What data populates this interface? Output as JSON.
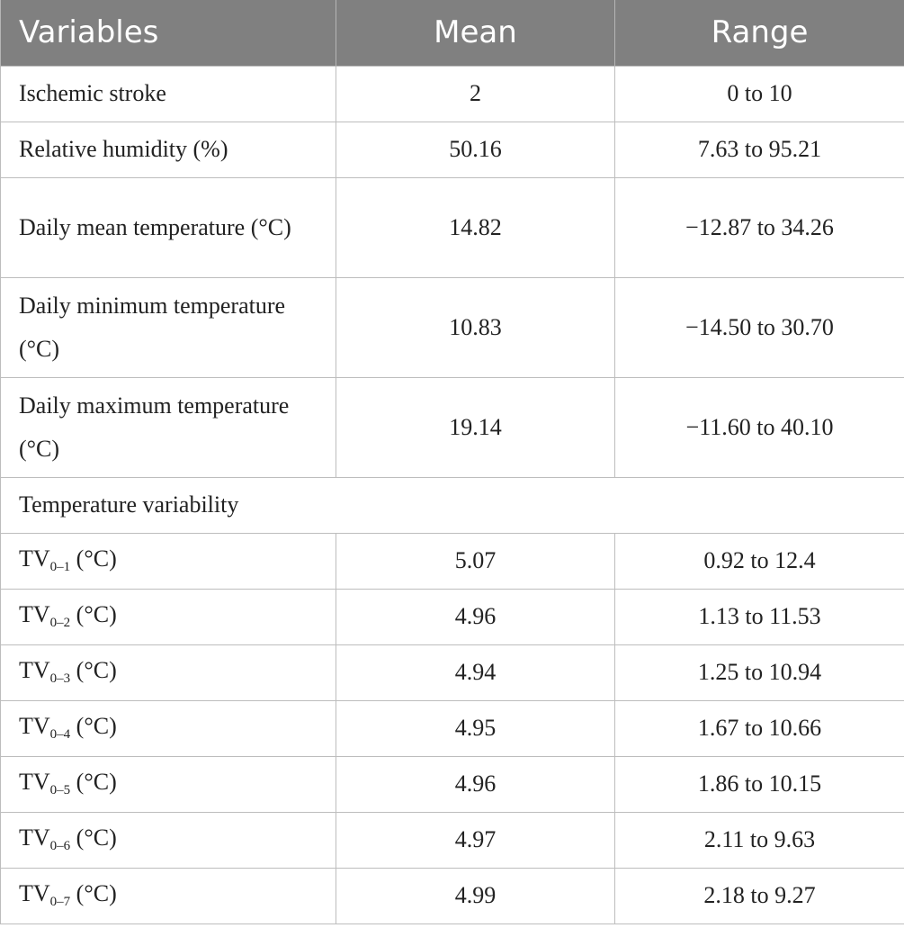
{
  "headers": [
    "Variables",
    "Mean",
    "Range"
  ],
  "rows": [
    {
      "variable": "Ischemic stroke",
      "mean": "2",
      "range": "0 to 10"
    },
    {
      "variable": "Relative humidity (%)",
      "mean": "50.16",
      "range": "7.63 to 95.21"
    },
    {
      "variable": "Daily mean temperature (°C)",
      "mean": "14.82",
      "range": "−12.87 to 34.26"
    },
    {
      "variable": "Daily minimum temperature (°C)",
      "mean": "10.83",
      "range": "−14.50 to 30.70"
    },
    {
      "variable": "Daily maximum temperature (°C)",
      "mean": "19.14",
      "range": "−11.60 to 40.10"
    }
  ],
  "section": "Temperature variability",
  "tv_rows": [
    {
      "prefix": "TV",
      "sub": "0–1",
      "unit": " (°C)",
      "mean": "5.07",
      "range": "0.92 to 12.4"
    },
    {
      "prefix": "TV",
      "sub": "0–2",
      "unit": " (°C)",
      "mean": "4.96",
      "range": "1.13 to 11.53"
    },
    {
      "prefix": "TV",
      "sub": "0–3",
      "unit": " (°C)",
      "mean": "4.94",
      "range": "1.25 to 10.94"
    },
    {
      "prefix": "TV",
      "sub": "0–4",
      "unit": " (°C)",
      "mean": "4.95",
      "range": "1.67 to 10.66"
    },
    {
      "prefix": "TV",
      "sub": "0–5",
      "unit": " (°C)",
      "mean": "4.96",
      "range": "1.86 to 10.15"
    },
    {
      "prefix": "TV",
      "sub": "0–6",
      "unit": " (°C)",
      "mean": "4.97",
      "range": "2.11 to 9.63"
    },
    {
      "prefix": "TV",
      "sub": "0–7",
      "unit": " (°C)",
      "mean": "4.99",
      "range": "2.18 to 9.27"
    }
  ]
}
